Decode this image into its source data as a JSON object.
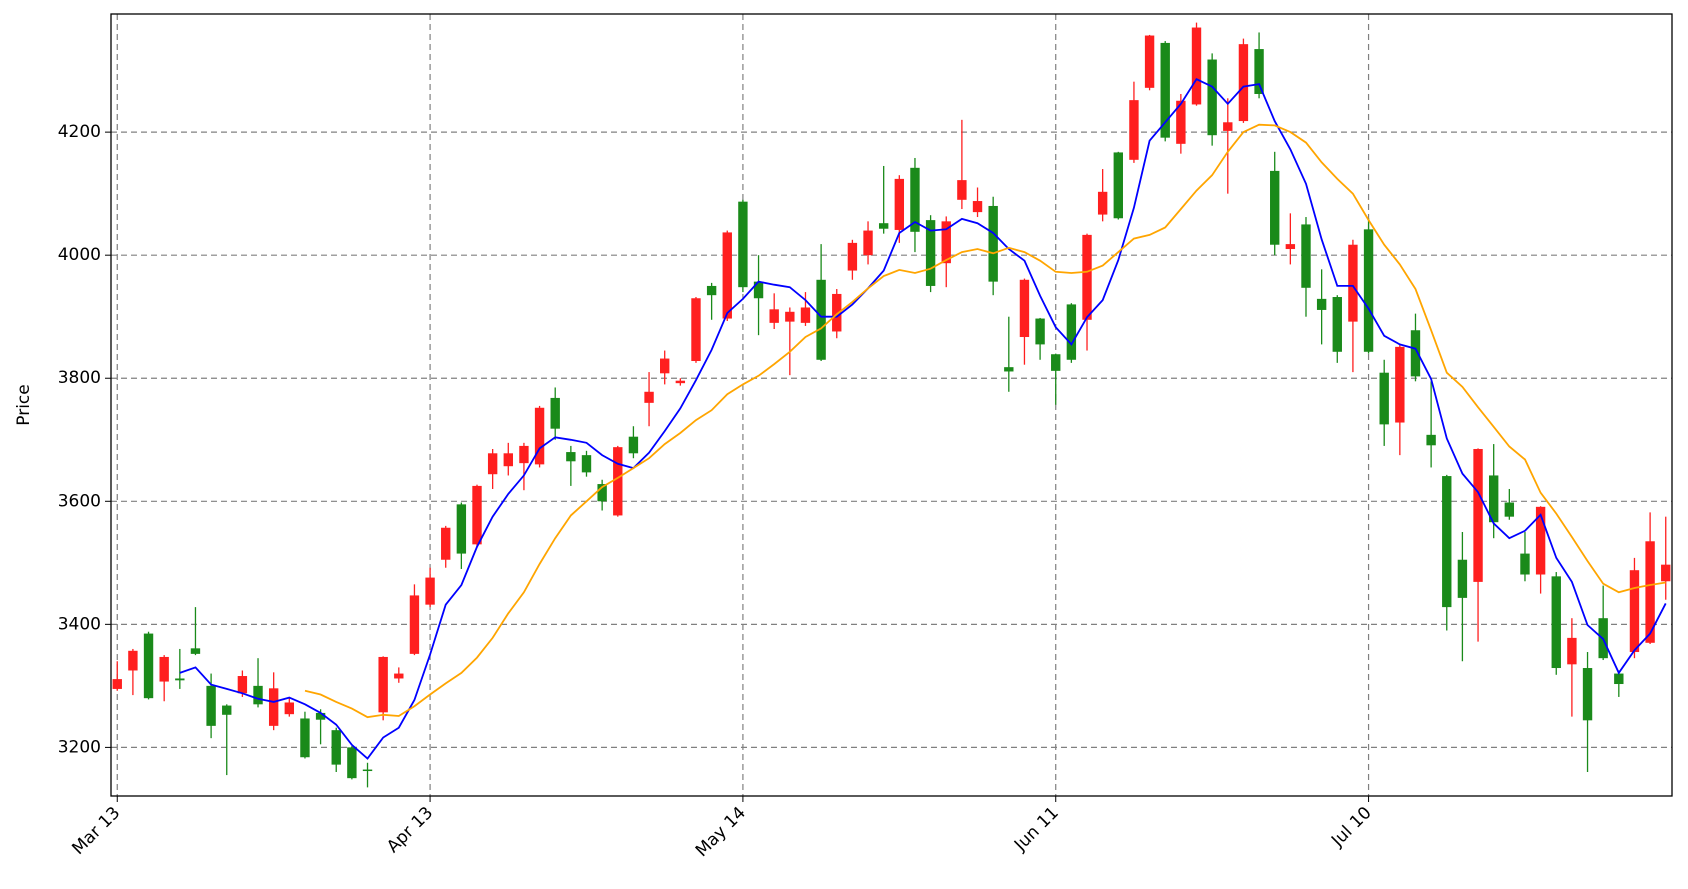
{
  "chart_data": {
    "type": "candlestick",
    "y_label": "Price",
    "xlim": [
      -0.4,
      99.4
    ],
    "xticks": [
      {
        "value": 0,
        "label": "Mar 13"
      },
      {
        "value": 20,
        "label": "Apr 13"
      },
      {
        "value": 40,
        "label": "May 14"
      },
      {
        "value": 60,
        "label": "Jun 11"
      },
      {
        "value": 80,
        "label": "Jul 10"
      }
    ],
    "ylim": [
      3121,
      4392
    ],
    "yticks": [
      3200,
      3400,
      3600,
      3800,
      4000,
      4200
    ],
    "grid": true,
    "up_color": "#ff1f1f",
    "down_color": "#1a8a1a",
    "open": [
      3295,
      3325,
      3385,
      3307,
      3312,
      3361,
      3300,
      3268,
      3288,
      3300,
      3235,
      3254,
      3247,
      3256,
      3228,
      3200,
      3164,
      3257,
      3312,
      3352,
      3432,
      3505,
      3595,
      3530,
      3644,
      3657,
      3662,
      3660,
      3768,
      3680,
      3675,
      3628,
      3577,
      3705,
      3760,
      3808,
      3792,
      3828,
      3950,
      3897,
      4087,
      3957,
      3890,
      3892,
      3890,
      3960,
      3876,
      3975,
      4000,
      4052,
      4041,
      4142,
      4057,
      3987,
      4090,
      4070,
      4080,
      3818,
      3867,
      3897,
      3839,
      3920,
      3895,
      4066,
      4167,
      4155,
      4272,
      4345,
      4181,
      4245,
      4318,
      4202,
      4218,
      4335,
      4137,
      4010,
      4050,
      3929,
      3932,
      3892,
      4042,
      3809,
      3728,
      3878,
      3708,
      3641,
      3505,
      3469,
      3642,
      3598,
      3515,
      3481,
      3478,
      3335,
      3329,
      3410,
      3320,
      3355,
      3370,
      3470
    ],
    "high": [
      3340,
      3360,
      3388,
      3350,
      3360,
      3428,
      3320,
      3270,
      3325,
      3345,
      3322,
      3282,
      3258,
      3262,
      3232,
      3202,
      3175,
      3348,
      3330,
      3465,
      3492,
      3560,
      3598,
      3627,
      3685,
      3695,
      3695,
      3755,
      3785,
      3690,
      3682,
      3635,
      3690,
      3722,
      3810,
      3845,
      3800,
      3932,
      3955,
      4040,
      4090,
      4000,
      3938,
      3915,
      3940,
      4018,
      3945,
      4025,
      4055,
      4145,
      4130,
      4158,
      4065,
      4063,
      4220,
      4110,
      4095,
      3900,
      3962,
      3898,
      3840,
      3922,
      4035,
      4140,
      4168,
      4282,
      4358,
      4348,
      4262,
      4378,
      4328,
      4255,
      4352,
      4362,
      4168,
      4068,
      4062,
      3977,
      3935,
      4025,
      4060,
      3830,
      3855,
      3905,
      3795,
      3643,
      3550,
      3686,
      3693,
      3620,
      3550,
      3592,
      3485,
      3410,
      3355,
      3463,
      3325,
      3508,
      3582,
      3575
    ],
    "low": [
      3292,
      3285,
      3278,
      3275,
      3295,
      3350,
      3215,
      3155,
      3282,
      3265,
      3228,
      3250,
      3182,
      3205,
      3160,
      3148,
      3135,
      3244,
      3305,
      3350,
      3428,
      3492,
      3490,
      3525,
      3620,
      3642,
      3618,
      3655,
      3700,
      3625,
      3640,
      3585,
      3575,
      3670,
      3722,
      3790,
      3788,
      3825,
      3895,
      3893,
      3940,
      3870,
      3880,
      3805,
      3885,
      3828,
      3865,
      3960,
      3985,
      4035,
      4020,
      4005,
      3940,
      3948,
      4075,
      4062,
      3935,
      3778,
      3822,
      3830,
      3757,
      3825,
      3845,
      4055,
      4058,
      4150,
      4268,
      4185,
      4165,
      4243,
      4178,
      4100,
      4215,
      4255,
      4000,
      3985,
      3900,
      3855,
      3825,
      3810,
      3840,
      3690,
      3675,
      3795,
      3655,
      3390,
      3340,
      3372,
      3540,
      3570,
      3470,
      3450,
      3318,
      3250,
      3160,
      3342,
      3282,
      3345,
      3368,
      3440
    ],
    "close": [
      3311,
      3357,
      3280,
      3347,
      3309,
      3352,
      3235,
      3253,
      3316,
      3270,
      3296,
      3273,
      3184,
      3245,
      3172,
      3150,
      3162,
      3347,
      3320,
      3447,
      3476,
      3557,
      3515,
      3625,
      3678,
      3678,
      3690,
      3752,
      3718,
      3665,
      3647,
      3600,
      3688,
      3678,
      3778,
      3832,
      3796,
      3930,
      3935,
      4037,
      3948,
      3930,
      3912,
      3908,
      3915,
      3830,
      3937,
      4020,
      4040,
      4043,
      4124,
      4038,
      3950,
      4055,
      4122,
      4088,
      3957,
      3811,
      3960,
      3855,
      3812,
      3830,
      4033,
      4103,
      4060,
      4252,
      4357,
      4191,
      4251,
      4370,
      4195,
      4216,
      4343,
      4262,
      4017,
      4018,
      3947,
      3911,
      3843,
      4017,
      3843,
      3725,
      3851,
      3803,
      3691,
      3428,
      3443,
      3685,
      3566,
      3575,
      3481,
      3591,
      3329,
      3378,
      3244,
      3345,
      3303,
      3488,
      3535,
      3497
    ],
    "lines": [
      {
        "color": "#0000ff",
        "values": [
          null,
          null,
          null,
          null,
          3321,
          3330,
          3302,
          3295,
          3288,
          3279,
          3274,
          3281,
          3270,
          3256,
          3237,
          3204,
          3182,
          3216,
          3232,
          3277,
          3351,
          3432,
          3464,
          3526,
          3575,
          3612,
          3642,
          3686,
          3704,
          3700,
          3695,
          3675,
          3661,
          3654,
          3679,
          3714,
          3751,
          3797,
          3846,
          3906,
          3929,
          3957,
          3952,
          3948,
          3927,
          3900,
          3900,
          3920,
          3946,
          3975,
          4036,
          4054,
          4040,
          4042,
          4059,
          4052,
          4036,
          4010,
          3991,
          3934,
          3883,
          3855,
          3899,
          3927,
          3992,
          4077,
          4186,
          4216,
          4246,
          4286,
          4274,
          4246,
          4274,
          4278,
          4218,
          4172,
          4116,
          4026,
          3950,
          3950,
          3913,
          3869,
          3855,
          3848,
          3799,
          3702,
          3645,
          3615,
          3564,
          3540,
          3552,
          3578,
          3508,
          3469,
          3399,
          3376,
          3321,
          3358,
          3385,
          3434
        ]
      },
      {
        "color": "#ffa500",
        "values": [
          null,
          null,
          null,
          null,
          null,
          null,
          null,
          null,
          null,
          null,
          null,
          null,
          3292,
          3286,
          3274,
          3263,
          3249,
          3253,
          3251,
          3267,
          3286,
          3304,
          3321,
          3346,
          3378,
          3418,
          3452,
          3498,
          3540,
          3577,
          3600,
          3623,
          3638,
          3654,
          3670,
          3693,
          3711,
          3732,
          3748,
          3774,
          3790,
          3804,
          3823,
          3843,
          3867,
          3881,
          3904,
          3924,
          3946,
          3966,
          3976,
          3971,
          3978,
          3992,
          4005,
          4010,
          4003,
          4012,
          4005,
          3991,
          3973,
          3971,
          3973,
          3983,
          4005,
          4027,
          4033,
          4045,
          4075,
          4105,
          4130,
          4168,
          4200,
          4212,
          4211,
          4200,
          4183,
          4151,
          4124,
          4100,
          4057,
          4017,
          3985,
          3945,
          3878,
          3809,
          3786,
          3753,
          3721,
          3689,
          3668,
          3614,
          3580,
          3542,
          3503,
          3466,
          3452,
          3459,
          3464,
          3468
        ]
      }
    ]
  }
}
